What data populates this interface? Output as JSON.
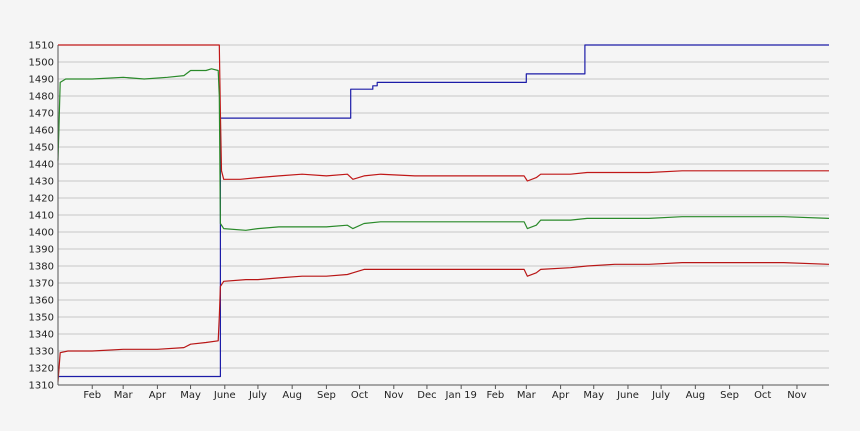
{
  "chart_data": {
    "type": "line",
    "title": "",
    "xlabel": "",
    "ylabel": "",
    "ylim": [
      1310,
      1510
    ],
    "y_ticks": [
      1310,
      1320,
      1330,
      1340,
      1350,
      1360,
      1370,
      1380,
      1390,
      1400,
      1410,
      1420,
      1430,
      1440,
      1450,
      1460,
      1470,
      1480,
      1490,
      1500,
      1510
    ],
    "x_range": [
      "2018-01-01",
      "2019-11-30"
    ],
    "x_ticks": [
      {
        "label": "Feb",
        "date": "2018-02-01"
      },
      {
        "label": "Mar",
        "date": "2018-03-01"
      },
      {
        "label": "Apr",
        "date": "2018-04-01"
      },
      {
        "label": "May",
        "date": "2018-05-01"
      },
      {
        "label": "June",
        "date": "2018-06-01"
      },
      {
        "label": "July",
        "date": "2018-07-01"
      },
      {
        "label": "Aug",
        "date": "2018-08-01"
      },
      {
        "label": "Sep",
        "date": "2018-09-01"
      },
      {
        "label": "Oct",
        "date": "2018-10-01"
      },
      {
        "label": "Nov",
        "date": "2018-11-01"
      },
      {
        "label": "Dec",
        "date": "2018-12-01"
      },
      {
        "label": "Jan 19",
        "date": "2019-01-01"
      },
      {
        "label": "Feb",
        "date": "2019-02-01"
      },
      {
        "label": "Mar",
        "date": "2019-03-01"
      },
      {
        "label": "Apr",
        "date": "2019-04-01"
      },
      {
        "label": "May",
        "date": "2019-05-01"
      },
      {
        "label": "June",
        "date": "2019-06-01"
      },
      {
        "label": "July",
        "date": "2019-07-01"
      },
      {
        "label": "Aug",
        "date": "2019-08-01"
      },
      {
        "label": "Sep",
        "date": "2019-09-01"
      },
      {
        "label": "Oct",
        "date": "2019-10-01"
      },
      {
        "label": "Nov",
        "date": "2019-11-01"
      }
    ],
    "grid": true,
    "legend": "none",
    "series": [
      {
        "color": "#1c1ca8",
        "step": true,
        "points": [
          [
            "2018-01-01",
            1315
          ],
          [
            "2018-05-26",
            1315
          ],
          [
            "2018-05-28",
            1467
          ],
          [
            "2018-09-22",
            1467
          ],
          [
            "2018-09-23",
            1484
          ],
          [
            "2018-10-12",
            1484
          ],
          [
            "2018-10-13",
            1486
          ],
          [
            "2018-10-16",
            1486
          ],
          [
            "2018-10-17",
            1488
          ],
          [
            "2019-02-29",
            1488
          ],
          [
            "2019-03-01",
            1493
          ],
          [
            "2019-04-22",
            1493
          ],
          [
            "2019-04-23",
            1510
          ],
          [
            "2019-11-30",
            1510
          ]
        ]
      },
      {
        "color": "#c01818",
        "step": false,
        "points": [
          [
            "2018-01-01",
            1510
          ],
          [
            "2018-05-27",
            1510
          ],
          [
            "2018-05-28",
            1470
          ],
          [
            "2018-05-29",
            1436
          ],
          [
            "2018-05-31",
            1431
          ],
          [
            "2018-06-15",
            1431
          ],
          [
            "2018-07-01",
            1432
          ],
          [
            "2018-07-20",
            1433
          ],
          [
            "2018-08-10",
            1434
          ],
          [
            "2018-09-01",
            1433
          ],
          [
            "2018-09-20",
            1434
          ],
          [
            "2018-09-25",
            1431
          ],
          [
            "2018-10-05",
            1433
          ],
          [
            "2018-10-20",
            1434
          ],
          [
            "2018-11-20",
            1433
          ],
          [
            "2018-12-20",
            1433
          ],
          [
            "2019-01-20",
            1433
          ],
          [
            "2019-02-27",
            1433
          ],
          [
            "2019-03-02",
            1430
          ],
          [
            "2019-03-10",
            1432
          ],
          [
            "2019-03-14",
            1434
          ],
          [
            "2019-04-10",
            1434
          ],
          [
            "2019-04-25",
            1435
          ],
          [
            "2019-05-20",
            1435
          ],
          [
            "2019-06-20",
            1435
          ],
          [
            "2019-07-20",
            1436
          ],
          [
            "2019-08-20",
            1436
          ],
          [
            "2019-09-20",
            1436
          ],
          [
            "2019-10-20",
            1436
          ],
          [
            "2019-11-30",
            1436
          ]
        ]
      },
      {
        "color": "#2a8a2a",
        "step": false,
        "points": [
          [
            "2018-01-01",
            1442
          ],
          [
            "2018-01-03",
            1488
          ],
          [
            "2018-01-08",
            1490
          ],
          [
            "2018-02-01",
            1490
          ],
          [
            "2018-03-01",
            1491
          ],
          [
            "2018-03-20",
            1490
          ],
          [
            "2018-04-10",
            1491
          ],
          [
            "2018-04-25",
            1492
          ],
          [
            "2018-05-01",
            1495
          ],
          [
            "2018-05-15",
            1495
          ],
          [
            "2018-05-20",
            1496
          ],
          [
            "2018-05-26",
            1495
          ],
          [
            "2018-05-27",
            1480
          ],
          [
            "2018-05-28",
            1405
          ],
          [
            "2018-05-31",
            1402
          ],
          [
            "2018-06-20",
            1401
          ],
          [
            "2018-07-01",
            1402
          ],
          [
            "2018-07-20",
            1403
          ],
          [
            "2018-08-10",
            1403
          ],
          [
            "2018-09-01",
            1403
          ],
          [
            "2018-09-20",
            1404
          ],
          [
            "2018-09-25",
            1402
          ],
          [
            "2018-10-05",
            1405
          ],
          [
            "2018-10-20",
            1406
          ],
          [
            "2018-11-20",
            1406
          ],
          [
            "2018-12-20",
            1406
          ],
          [
            "2019-01-20",
            1406
          ],
          [
            "2019-02-27",
            1406
          ],
          [
            "2019-03-02",
            1402
          ],
          [
            "2019-03-10",
            1404
          ],
          [
            "2019-03-14",
            1407
          ],
          [
            "2019-04-10",
            1407
          ],
          [
            "2019-04-25",
            1408
          ],
          [
            "2019-05-20",
            1408
          ],
          [
            "2019-06-20",
            1408
          ],
          [
            "2019-07-20",
            1409
          ],
          [
            "2019-08-20",
            1409
          ],
          [
            "2019-09-20",
            1409
          ],
          [
            "2019-10-20",
            1409
          ],
          [
            "2019-11-30",
            1408
          ]
        ]
      },
      {
        "color": "#b81616",
        "step": false,
        "points": [
          [
            "2018-01-01",
            1312
          ],
          [
            "2018-01-03",
            1329
          ],
          [
            "2018-01-10",
            1330
          ],
          [
            "2018-02-01",
            1330
          ],
          [
            "2018-03-01",
            1331
          ],
          [
            "2018-04-01",
            1331
          ],
          [
            "2018-04-25",
            1332
          ],
          [
            "2018-05-01",
            1334
          ],
          [
            "2018-05-15",
            1335
          ],
          [
            "2018-05-26",
            1336
          ],
          [
            "2018-05-27",
            1350
          ],
          [
            "2018-05-28",
            1368
          ],
          [
            "2018-05-31",
            1371
          ],
          [
            "2018-06-20",
            1372
          ],
          [
            "2018-07-01",
            1372
          ],
          [
            "2018-07-20",
            1373
          ],
          [
            "2018-08-10",
            1374
          ],
          [
            "2018-09-01",
            1374
          ],
          [
            "2018-09-20",
            1375
          ],
          [
            "2018-09-25",
            1376
          ],
          [
            "2018-10-05",
            1378
          ],
          [
            "2018-10-20",
            1378
          ],
          [
            "2018-11-20",
            1378
          ],
          [
            "2018-12-20",
            1378
          ],
          [
            "2019-01-20",
            1378
          ],
          [
            "2019-02-27",
            1378
          ],
          [
            "2019-03-02",
            1374
          ],
          [
            "2019-03-10",
            1376
          ],
          [
            "2019-03-14",
            1378
          ],
          [
            "2019-04-10",
            1379
          ],
          [
            "2019-04-25",
            1380
          ],
          [
            "2019-05-20",
            1381
          ],
          [
            "2019-06-20",
            1381
          ],
          [
            "2019-07-20",
            1382
          ],
          [
            "2019-08-20",
            1382
          ],
          [
            "2019-09-20",
            1382
          ],
          [
            "2019-10-20",
            1382
          ],
          [
            "2019-11-30",
            1381
          ]
        ]
      }
    ]
  }
}
